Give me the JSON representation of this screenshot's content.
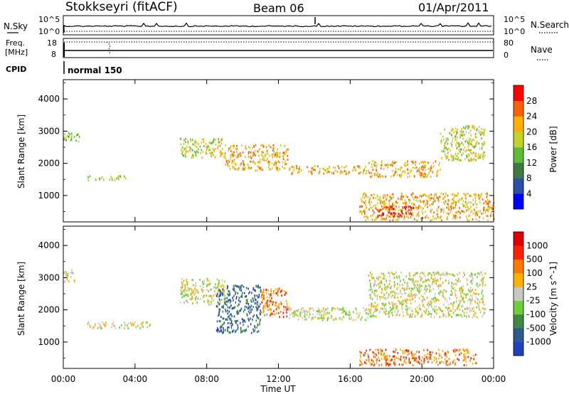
{
  "header": {
    "station": "Stokkseyri (fitACF)",
    "beam": "Beam 06",
    "date": "01/Apr/2011"
  },
  "noise_panel": {
    "left_label": "N.Sky",
    "right_label": "N.Search",
    "left_ticks": [
      "10^5",
      "10^0"
    ],
    "right_ticks": [
      "10^5",
      "10^0"
    ]
  },
  "freq_panel": {
    "left_label_1": "Freq.",
    "left_label_2": "[MHz]",
    "right_label": "Nave",
    "left_ticks": [
      "18",
      "8"
    ],
    "right_ticks": [
      "80",
      "0"
    ],
    "cpid_label": "CPID",
    "mode_text": "normal 150"
  },
  "chart_data": [
    {
      "type": "heatmap",
      "quantity": "power",
      "ylabel": "Slant Range [km]",
      "yticks": [
        "4000",
        "3000",
        "2000",
        "1000"
      ],
      "ylim": [
        180,
        4600
      ],
      "colorbar": {
        "label": "Power [dB]",
        "ticks": [
          "28",
          "24",
          "20",
          "16",
          "12",
          "8",
          "4"
        ],
        "colors": [
          "#0000ff",
          "#2b4fa8",
          "#3e7a3e",
          "#5dbb34",
          "#c6d22c",
          "#ffb000",
          "#ff6000",
          "#ff0000"
        ]
      },
      "features": [
        {
          "t0": 0.0,
          "t1": 0.9,
          "r0": 2700,
          "r1": 3000,
          "level": 3
        },
        {
          "t0": 1.3,
          "t1": 3.5,
          "r0": 1500,
          "r1": 1650,
          "level": 4
        },
        {
          "t0": 6.5,
          "t1": 9.0,
          "r0": 2200,
          "r1": 2800,
          "level": 4
        },
        {
          "t0": 9.0,
          "t1": 12.5,
          "r0": 1800,
          "r1": 2600,
          "level": 5
        },
        {
          "t0": 12.5,
          "t1": 17.0,
          "r0": 1700,
          "r1": 1950,
          "level": 5
        },
        {
          "t0": 17.0,
          "t1": 21.0,
          "r0": 1600,
          "r1": 2100,
          "level": 5
        },
        {
          "t0": 21.0,
          "t1": 23.5,
          "r0": 2100,
          "r1": 3200,
          "level": 4
        },
        {
          "t0": 16.5,
          "t1": 24.0,
          "r0": 250,
          "r1": 1100,
          "level": 5
        },
        {
          "t0": 17.5,
          "t1": 19.5,
          "r0": 350,
          "r1": 700,
          "level": 7
        }
      ]
    },
    {
      "type": "heatmap",
      "quantity": "velocity",
      "ylabel": "Slant Range [km]",
      "yticks": [
        "4000",
        "3000",
        "2000",
        "1000"
      ],
      "ylim": [
        180,
        4600
      ],
      "xlabel": "Time UT",
      "xticks": [
        "00:00",
        "04:00",
        "08:00",
        "12:00",
        "16:00",
        "20:00",
        "00:00"
      ],
      "colorbar": {
        "label": "Velocity [m s^-1]",
        "ticks": [
          "1000",
          "500",
          "100",
          "25",
          "-25",
          "-100",
          "-500",
          "-1000"
        ],
        "colors": [
          "#2040c0",
          "#2e5a8c",
          "#3f8a3f",
          "#6ecf3a",
          "#c8c8c0",
          "#ffb000",
          "#ff7800",
          "#ff2000",
          "#e00000"
        ]
      },
      "features": [
        {
          "t0": 0.0,
          "t1": 0.6,
          "r0": 2900,
          "r1": 3300,
          "level": 4
        },
        {
          "t0": 1.3,
          "t1": 5.0,
          "r0": 1450,
          "r1": 1650,
          "level": 4
        },
        {
          "t0": 6.5,
          "t1": 9.0,
          "r0": 2200,
          "r1": 3000,
          "level": 4
        },
        {
          "t0": 8.5,
          "t1": 11.0,
          "r0": 1300,
          "r1": 2800,
          "level": 1
        },
        {
          "t0": 11.0,
          "t1": 12.5,
          "r0": 1800,
          "r1": 2700,
          "level": 6
        },
        {
          "t0": 12.5,
          "t1": 17.0,
          "r0": 1700,
          "r1": 2100,
          "level": 4
        },
        {
          "t0": 17.0,
          "t1": 23.5,
          "r0": 1800,
          "r1": 3200,
          "level": 4
        },
        {
          "t0": 16.5,
          "t1": 23.0,
          "r0": 300,
          "r1": 800,
          "level": 6
        }
      ]
    }
  ]
}
